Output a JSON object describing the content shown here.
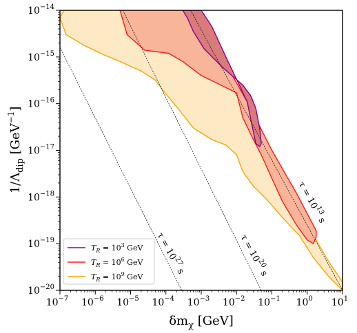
{
  "chart_data": {
    "type": "area",
    "xlabel": "δm_χ [GeV]",
    "ylabel": "1/Λ_dip [GeV^-1]",
    "xscale": "log",
    "yscale": "log",
    "xlim": [
      1e-07,
      10
    ],
    "ylim": [
      1e-20,
      1e-14
    ],
    "x_ticks": [
      1e-07,
      1e-06,
      1e-05,
      0.0001,
      0.001,
      0.01,
      0.1,
      1,
      10
    ],
    "x_tick_labels": [
      {
        "base": "10",
        "exp": "−7"
      },
      {
        "base": "10",
        "exp": "−6"
      },
      {
        "base": "10",
        "exp": "−5"
      },
      {
        "base": "10",
        "exp": "−4"
      },
      {
        "base": "10",
        "exp": "−3"
      },
      {
        "base": "10",
        "exp": "−2"
      },
      {
        "base": "10",
        "exp": "−1"
      },
      {
        "base": "10",
        "exp": "0"
      },
      {
        "base": "10",
        "exp": "1"
      }
    ],
    "y_ticks": [
      1e-20,
      1e-19,
      1e-18,
      1e-17,
      1e-16,
      1e-15,
      1e-14
    ],
    "y_tick_labels": [
      {
        "base": "10",
        "exp": "−20"
      },
      {
        "base": "10",
        "exp": "−19"
      },
      {
        "base": "10",
        "exp": "−18"
      },
      {
        "base": "10",
        "exp": "−17"
      },
      {
        "base": "10",
        "exp": "−16"
      },
      {
        "base": "10",
        "exp": "−15"
      },
      {
        "base": "10",
        "exp": "−14"
      }
    ],
    "grid": false,
    "legend_position": "bottom-left",
    "series": [
      {
        "name": "T_R = 10^9 GeV",
        "line_color": "#ffa500",
        "fill_color": "#fde9c4",
        "points": [
          [
            1.3e-07,
            1e-14
          ],
          [
            1e-07,
            7e-15
          ],
          [
            1.5e-07,
            3e-15
          ],
          [
            5e-07,
            1.75e-15
          ],
          [
            1.8e-06,
            1.1e-15
          ],
          [
            5e-06,
            8e-16
          ],
          [
            2e-05,
            5e-16
          ],
          [
            5e-05,
            3.2e-16
          ],
          [
            0.0001,
            1.6e-16
          ],
          [
            0.00025,
            7e-17
          ],
          [
            0.0006,
            3e-17
          ],
          [
            0.002,
            1.7e-17
          ],
          [
            0.005,
            1.3e-17
          ],
          [
            0.01,
            8e-18
          ],
          [
            0.015,
            3.5e-18
          ],
          [
            0.03,
            1.7e-18
          ],
          [
            0.07,
            9e-19
          ],
          [
            0.2,
            3.6e-19
          ],
          [
            0.6,
            1.5e-19
          ],
          [
            1.5,
            5e-20
          ],
          [
            4,
            2e-20
          ],
          [
            10,
            1e-20
          ],
          [
            10,
            1.5e-20
          ],
          [
            4,
            4.2e-20
          ],
          [
            1.5,
            1.5e-19
          ],
          [
            0.5,
            6.6e-19
          ],
          [
            0.1,
            5.6e-18
          ],
          [
            0.02,
            6e-17
          ],
          [
            0.005,
            5.6e-16
          ],
          [
            0.001,
            6.2e-15
          ],
          [
            0.0003,
            1e-14
          ]
        ]
      },
      {
        "name": "T_R = 10^6 GeV",
        "line_color": "#ff1a1a",
        "fill_color": "#f9b59a",
        "points": [
          [
            5e-06,
            1e-14
          ],
          [
            8e-06,
            3e-15
          ],
          [
            2.5e-05,
            1.4e-15
          ],
          [
            0.00012,
            1.2e-15
          ],
          [
            0.0003,
            8e-16
          ],
          [
            0.001,
            4e-16
          ],
          [
            0.004,
            2.4e-16
          ],
          [
            0.01,
            1.7e-16
          ],
          [
            0.015,
            5e-17
          ],
          [
            0.03,
            1.7e-17
          ],
          [
            0.05,
            8e-18
          ],
          [
            0.1,
            2.5e-18
          ],
          [
            0.2,
            8e-19
          ],
          [
            0.5,
            2.5e-19
          ],
          [
            1,
            1.2e-19
          ],
          [
            1.5,
            1e-19
          ],
          [
            1.8,
            1.4e-19
          ],
          [
            1.8,
            1.9e-19
          ],
          [
            0.5,
            1.2e-18
          ],
          [
            0.1,
            1e-17
          ],
          [
            0.02,
            1.1e-16
          ],
          [
            0.005,
            7e-16
          ],
          [
            0.0015,
            4e-15
          ],
          [
            0.0006,
            1e-14
          ]
        ]
      },
      {
        "name": "T_R = 10^3 GeV",
        "line_color": "#8b008b",
        "fill_color": "#d97b7b",
        "points": [
          [
            0.0003,
            1e-14
          ],
          [
            0.0004,
            7e-15
          ],
          [
            0.0006,
            3.5e-15
          ],
          [
            0.0012,
            1.5e-15
          ],
          [
            0.004,
            6e-16
          ],
          [
            0.015,
            2.5e-16
          ],
          [
            0.025,
            1.5e-16
          ],
          [
            0.035,
            8e-17
          ],
          [
            0.045,
            3e-17
          ],
          [
            0.05,
            1.4e-17
          ],
          [
            0.045,
            1.2e-17
          ],
          [
            0.035,
            1.4e-17
          ],
          [
            0.02,
            1.1e-16
          ],
          [
            0.005,
            1e-15
          ],
          [
            0.002,
            4.5e-15
          ],
          [
            0.001,
            1e-14
          ]
        ]
      }
    ],
    "reference_lines": [
      {
        "label": "τ = 10^27 s",
        "points": [
          [
            1e-07,
            1.6e-15
          ],
          [
            0.00028,
            1e-20
          ]
        ]
      },
      {
        "label": "τ = 10^20 s",
        "points": [
          [
            6e-06,
            1e-14
          ],
          [
            0.05,
            1e-20
          ]
        ]
      },
      {
        "label": "τ = 10^13 s",
        "points": [
          [
            0.0005,
            1e-14
          ],
          [
            10,
            1e-20
          ]
        ]
      }
    ],
    "legend": [
      {
        "base": "T",
        "sub": "R",
        "eq": " = 10",
        "exp": "3",
        "unit": " GeV",
        "color": "#8b008b"
      },
      {
        "base": "T",
        "sub": "R",
        "eq": " = 10",
        "exp": "6",
        "unit": " GeV",
        "color": "#ff1a1a"
      },
      {
        "base": "T",
        "sub": "R",
        "eq": " = 10",
        "exp": "9",
        "unit": " GeV",
        "color": "#ffa500"
      }
    ],
    "annotations": [
      {
        "prefix": "τ = 10",
        "exp": "27",
        "suffix": " s"
      },
      {
        "prefix": "τ = 10",
        "exp": "20",
        "suffix": " s"
      },
      {
        "prefix": "τ = 10",
        "exp": "13",
        "suffix": " s"
      }
    ],
    "xlabel_parts": {
      "delta": "δm",
      "sub": "χ",
      "unit": " [GeV]"
    },
    "ylabel_parts": {
      "prefix": "1/Λ",
      "sub": "dip",
      "unit_pre": " [GeV",
      "unit_exp": "−1",
      "unit_post": "]"
    }
  }
}
